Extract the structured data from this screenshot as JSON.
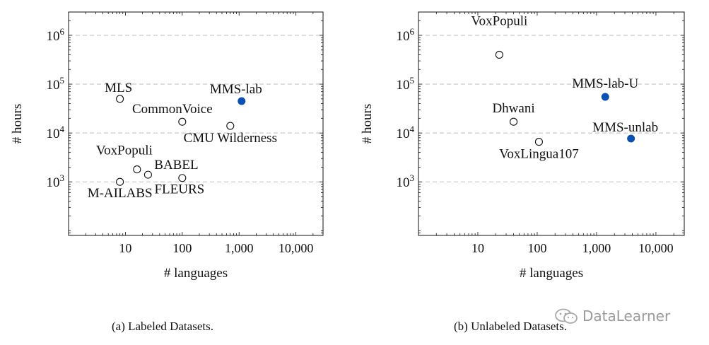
{
  "chart_data": [
    {
      "type": "scatter",
      "caption": "(a) Labeled Datasets.",
      "xlabel": "# languages",
      "ylabel": "# hours",
      "xscale": "log",
      "yscale": "log",
      "xlim": [
        1,
        30000
      ],
      "ylim": [
        80,
        3000000
      ],
      "xticks": [
        10,
        100,
        1000,
        10000
      ],
      "xtick_labels": [
        "10",
        "100",
        "1,000",
        "10,000"
      ],
      "yticks": [
        1000,
        10000,
        100000,
        1000000
      ],
      "ytick_labels": [
        {
          "base": "10",
          "exp": "3"
        },
        {
          "base": "10",
          "exp": "4"
        },
        {
          "base": "10",
          "exp": "5"
        },
        {
          "base": "10",
          "exp": "6"
        }
      ],
      "grid": "horizontal dashed",
      "points": [
        {
          "label": "MLS",
          "x": 8,
          "y": 50000,
          "filled": false
        },
        {
          "label": "MMS-lab",
          "x": 1107,
          "y": 45000,
          "filled": true
        },
        {
          "label": "CommonVoice",
          "x": 100,
          "y": 17000,
          "filled": false
        },
        {
          "label": "CMU Wilderness",
          "x": 700,
          "y": 14000,
          "filled": false
        },
        {
          "label": "VoxPopuli",
          "x": 16,
          "y": 1800,
          "filled": false
        },
        {
          "label": "BABEL",
          "x": 25,
          "y": 1400,
          "filled": false
        },
        {
          "label": "M-AILABS",
          "x": 8,
          "y": 1000,
          "filled": false
        },
        {
          "label": "FLEURS",
          "x": 100,
          "y": 1200,
          "filled": false
        }
      ]
    },
    {
      "type": "scatter",
      "caption": "(b) Unlabeled Datasets.",
      "xlabel": "# languages",
      "ylabel": "# hours",
      "xscale": "log",
      "yscale": "log",
      "xlim": [
        1,
        30000
      ],
      "ylim": [
        80,
        3000000
      ],
      "xticks": [
        10,
        100,
        1000,
        10000
      ],
      "xtick_labels": [
        "10",
        "100",
        "1,000",
        "10,000"
      ],
      "yticks": [
        1000,
        10000,
        100000,
        1000000
      ],
      "ytick_labels": [
        {
          "base": "10",
          "exp": "3"
        },
        {
          "base": "10",
          "exp": "4"
        },
        {
          "base": "10",
          "exp": "5"
        },
        {
          "base": "10",
          "exp": "6"
        }
      ],
      "grid": "horizontal dashed",
      "points": [
        {
          "label": "VoxPopuli",
          "x": 23,
          "y": 400000,
          "filled": false
        },
        {
          "label": "MMS-lab-U",
          "x": 1400,
          "y": 55000,
          "filled": true
        },
        {
          "label": "Dhwani",
          "x": 40,
          "y": 17000,
          "filled": false
        },
        {
          "label": "MMS-unlab",
          "x": 3800,
          "y": 7700,
          "filled": true
        },
        {
          "label": "VoxLingua107",
          "x": 107,
          "y": 6600,
          "filled": false
        }
      ]
    }
  ],
  "colors": {
    "filled_marker": "#0b4fb3",
    "grid": "#bdbdbd",
    "axis": "#111111"
  },
  "watermark": {
    "text": "DataLearner",
    "icon": "wechat-icon"
  }
}
